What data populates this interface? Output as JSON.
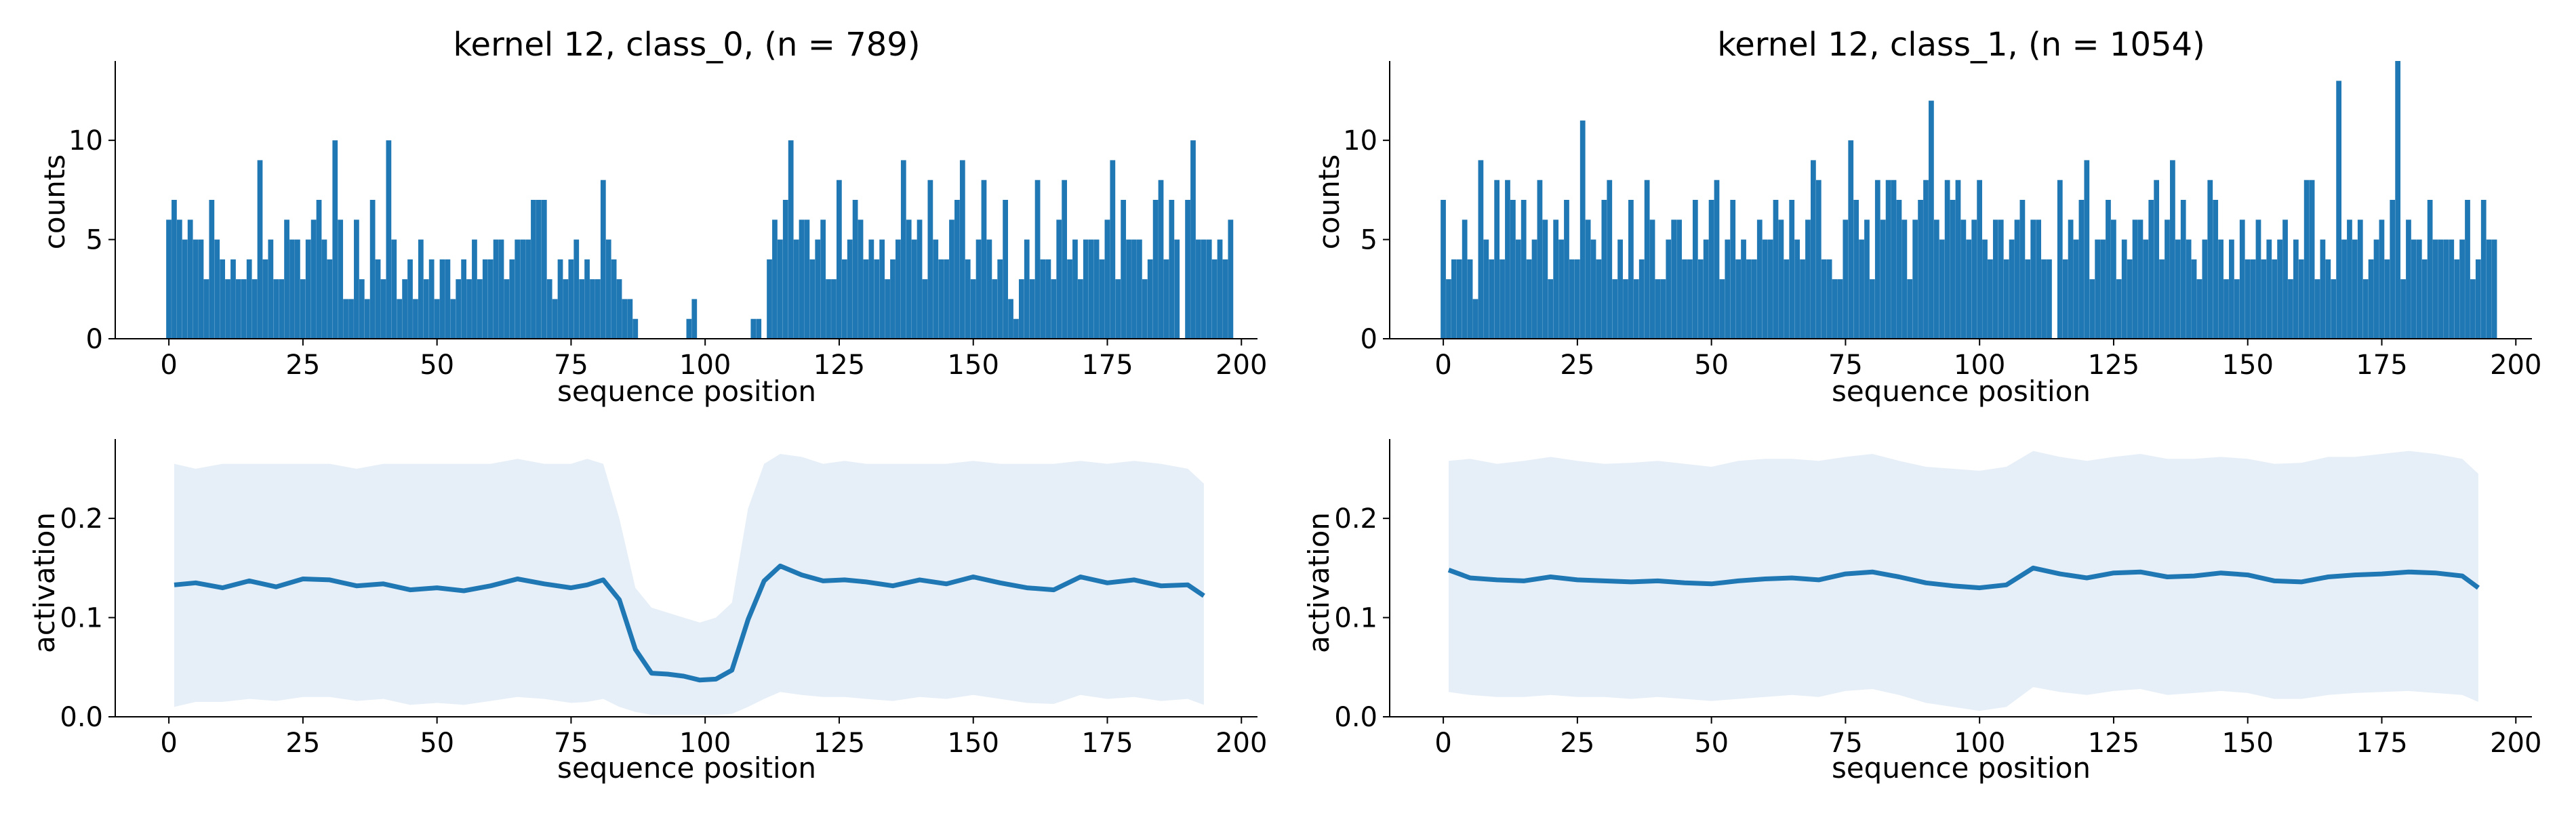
{
  "colors": {
    "accent": "#1f77b4",
    "band": "#e6eff8"
  },
  "charts": [
    {
      "title": "kernel 12, class_0, (n = 789)",
      "xlabel": "sequence position",
      "ylabel": "counts"
    },
    {
      "title": "kernel 12, class_1, (n = 1054)",
      "xlabel": "sequence position",
      "ylabel": "counts"
    },
    {
      "title": "",
      "xlabel": "sequence position",
      "ylabel": "activation"
    },
    {
      "title": "",
      "xlabel": "sequence position",
      "ylabel": "activation"
    }
  ],
  "chart_data": [
    {
      "type": "bar",
      "title": "kernel 12, class_0, (n = 789)",
      "xlabel": "sequence position",
      "ylabel": "counts",
      "xlim": [
        -10,
        203
      ],
      "ylim": [
        0,
        14
      ],
      "xticks": [
        0,
        25,
        50,
        75,
        100,
        125,
        150,
        175,
        200
      ],
      "yticks": [
        0,
        5,
        10
      ],
      "x_start": 0,
      "values": [
        6,
        7,
        6,
        5,
        6,
        5,
        5,
        3,
        7,
        5,
        4,
        3,
        4,
        3,
        3,
        4,
        3,
        9,
        4,
        5,
        3,
        3,
        6,
        5,
        5,
        3,
        5,
        6,
        7,
        5,
        4,
        10,
        6,
        2,
        2,
        6,
        3,
        2,
        7,
        4,
        3,
        10,
        5,
        2,
        3,
        4,
        2,
        5,
        3,
        4,
        2,
        4,
        4,
        2,
        3,
        4,
        3,
        5,
        3,
        4,
        4,
        5,
        5,
        3,
        4,
        5,
        5,
        5,
        7,
        7,
        7,
        3,
        2,
        4,
        3,
        4,
        5,
        3,
        4,
        3,
        3,
        8,
        5,
        4,
        3,
        2,
        2,
        1,
        0,
        0,
        0,
        0,
        0,
        0,
        0,
        0,
        0,
        1,
        2,
        0,
        0,
        0,
        0,
        0,
        0,
        0,
        0,
        0,
        0,
        1,
        1,
        0,
        4,
        6,
        5,
        7,
        10,
        5,
        6,
        6,
        4,
        5,
        6,
        3,
        3,
        8,
        4,
        5,
        7,
        6,
        4,
        5,
        4,
        5,
        3,
        4,
        5,
        9,
        6,
        5,
        6,
        3,
        8,
        5,
        4,
        4,
        6,
        7,
        9,
        4,
        3,
        5,
        8,
        5,
        3,
        4,
        7,
        2,
        1,
        3,
        5,
        3,
        8,
        4,
        4,
        3,
        6,
        8,
        4,
        5,
        3,
        5,
        5,
        5,
        4,
        6,
        9,
        3,
        7,
        5,
        5,
        5,
        3,
        4,
        7,
        8,
        4,
        7,
        5,
        0,
        7,
        10,
        5,
        5,
        5,
        4,
        5,
        4,
        6
      ]
    },
    {
      "type": "bar",
      "title": "kernel 12, class_1, (n = 1054)",
      "xlabel": "sequence position",
      "ylabel": "counts",
      "xlim": [
        -10,
        203
      ],
      "ylim": [
        0,
        14
      ],
      "xticks": [
        0,
        25,
        50,
        75,
        100,
        125,
        150,
        175,
        200
      ],
      "yticks": [
        0,
        5,
        10
      ],
      "x_start": 0,
      "values": [
        7,
        3,
        4,
        4,
        6,
        4,
        2,
        9,
        5,
        4,
        8,
        4,
        8,
        7,
        5,
        7,
        4,
        5,
        8,
        6,
        3,
        6,
        5,
        7,
        4,
        4,
        11,
        6,
        5,
        4,
        7,
        8,
        3,
        5,
        3,
        7,
        3,
        4,
        8,
        6,
        3,
        3,
        5,
        6,
        6,
        4,
        4,
        7,
        4,
        5,
        7,
        8,
        3,
        5,
        7,
        4,
        5,
        4,
        4,
        6,
        5,
        5,
        7,
        6,
        4,
        7,
        5,
        4,
        6,
        9,
        8,
        4,
        4,
        3,
        3,
        6,
        10,
        7,
        5,
        6,
        3,
        8,
        6,
        8,
        8,
        7,
        6,
        3,
        6,
        7,
        8,
        12,
        6,
        5,
        8,
        7,
        8,
        6,
        5,
        6,
        8,
        5,
        4,
        6,
        6,
        4,
        5,
        6,
        7,
        4,
        6,
        6,
        4,
        4,
        0,
        8,
        4,
        6,
        5,
        7,
        9,
        3,
        5,
        5,
        7,
        6,
        3,
        5,
        4,
        6,
        6,
        5,
        7,
        8,
        4,
        6,
        9,
        5,
        7,
        5,
        4,
        3,
        5,
        8,
        7,
        5,
        3,
        5,
        3,
        6,
        4,
        4,
        6,
        4,
        5,
        4,
        5,
        6,
        3,
        5,
        4,
        8,
        8,
        3,
        5,
        4,
        3,
        13,
        5,
        6,
        5,
        6,
        3,
        4,
        5,
        6,
        4,
        7,
        14,
        3,
        6,
        5,
        5,
        4,
        7,
        5,
        5,
        5,
        5,
        4,
        5,
        7,
        3,
        4,
        7,
        5,
        5
      ]
    },
    {
      "type": "area",
      "title": "",
      "xlabel": "sequence position",
      "ylabel": "activation",
      "xlim": [
        -10,
        203
      ],
      "ylim": [
        0,
        0.28
      ],
      "xticks": [
        0,
        25,
        50,
        75,
        100,
        125,
        150,
        175,
        200
      ],
      "yticks": [
        0.0,
        0.1,
        0.2
      ],
      "ytick_labels": [
        "0.0",
        "0.1",
        "0.2"
      ],
      "x": [
        1,
        5,
        10,
        15,
        20,
        25,
        30,
        35,
        40,
        45,
        50,
        55,
        60,
        65,
        70,
        75,
        78,
        81,
        84,
        87,
        90,
        93,
        96,
        99,
        102,
        105,
        108,
        111,
        114,
        118,
        122,
        126,
        130,
        135,
        140,
        145,
        150,
        155,
        160,
        165,
        170,
        175,
        180,
        185,
        190,
        193
      ],
      "mean": [
        0.133,
        0.135,
        0.13,
        0.137,
        0.131,
        0.139,
        0.138,
        0.132,
        0.134,
        0.128,
        0.13,
        0.127,
        0.132,
        0.139,
        0.134,
        0.13,
        0.133,
        0.138,
        0.118,
        0.068,
        0.044,
        0.043,
        0.041,
        0.037,
        0.038,
        0.047,
        0.098,
        0.137,
        0.152,
        0.143,
        0.137,
        0.138,
        0.136,
        0.132,
        0.138,
        0.134,
        0.141,
        0.135,
        0.13,
        0.128,
        0.141,
        0.135,
        0.138,
        0.132,
        0.133,
        0.122
      ],
      "upper": [
        0.255,
        0.25,
        0.255,
        0.255,
        0.255,
        0.255,
        0.255,
        0.25,
        0.255,
        0.255,
        0.255,
        0.255,
        0.255,
        0.26,
        0.255,
        0.255,
        0.26,
        0.255,
        0.2,
        0.13,
        0.11,
        0.105,
        0.1,
        0.095,
        0.1,
        0.115,
        0.21,
        0.255,
        0.265,
        0.262,
        0.255,
        0.258,
        0.255,
        0.255,
        0.255,
        0.255,
        0.258,
        0.255,
        0.255,
        0.255,
        0.258,
        0.255,
        0.258,
        0.255,
        0.25,
        0.235
      ],
      "lower": [
        0.01,
        0.015,
        0.015,
        0.018,
        0.016,
        0.02,
        0.02,
        0.016,
        0.018,
        0.012,
        0.014,
        0.012,
        0.016,
        0.02,
        0.018,
        0.014,
        0.015,
        0.018,
        0.01,
        0.005,
        0.002,
        0.002,
        0.002,
        0.002,
        0.002,
        0.003,
        0.01,
        0.018,
        0.025,
        0.022,
        0.02,
        0.02,
        0.018,
        0.016,
        0.02,
        0.018,
        0.022,
        0.018,
        0.014,
        0.013,
        0.022,
        0.018,
        0.02,
        0.016,
        0.018,
        0.012
      ]
    },
    {
      "type": "area",
      "title": "",
      "xlabel": "sequence position",
      "ylabel": "activation",
      "xlim": [
        -10,
        203
      ],
      "ylim": [
        0,
        0.28
      ],
      "xticks": [
        0,
        25,
        50,
        75,
        100,
        125,
        150,
        175,
        200
      ],
      "yticks": [
        0.0,
        0.1,
        0.2
      ],
      "ytick_labels": [
        "0.0",
        "0.1",
        "0.2"
      ],
      "x": [
        1,
        5,
        10,
        15,
        20,
        25,
        30,
        35,
        40,
        45,
        50,
        55,
        60,
        65,
        70,
        75,
        80,
        85,
        90,
        95,
        100,
        105,
        110,
        115,
        120,
        125,
        130,
        135,
        140,
        145,
        150,
        155,
        160,
        165,
        170,
        175,
        180,
        185,
        190,
        193
      ],
      "mean": [
        0.148,
        0.14,
        0.138,
        0.137,
        0.141,
        0.138,
        0.137,
        0.136,
        0.137,
        0.135,
        0.134,
        0.137,
        0.139,
        0.14,
        0.138,
        0.144,
        0.146,
        0.141,
        0.135,
        0.132,
        0.13,
        0.133,
        0.15,
        0.144,
        0.14,
        0.145,
        0.146,
        0.141,
        0.142,
        0.145,
        0.143,
        0.137,
        0.136,
        0.141,
        0.143,
        0.144,
        0.146,
        0.145,
        0.142,
        0.13
      ],
      "upper": [
        0.258,
        0.26,
        0.255,
        0.258,
        0.262,
        0.258,
        0.255,
        0.256,
        0.258,
        0.255,
        0.252,
        0.258,
        0.26,
        0.26,
        0.258,
        0.262,
        0.265,
        0.258,
        0.252,
        0.25,
        0.248,
        0.252,
        0.268,
        0.262,
        0.258,
        0.262,
        0.265,
        0.26,
        0.26,
        0.262,
        0.26,
        0.255,
        0.256,
        0.262,
        0.262,
        0.265,
        0.268,
        0.265,
        0.26,
        0.245
      ],
      "lower": [
        0.025,
        0.022,
        0.02,
        0.02,
        0.022,
        0.02,
        0.02,
        0.018,
        0.02,
        0.018,
        0.016,
        0.018,
        0.02,
        0.022,
        0.02,
        0.026,
        0.028,
        0.022,
        0.014,
        0.01,
        0.006,
        0.01,
        0.03,
        0.025,
        0.022,
        0.026,
        0.028,
        0.022,
        0.024,
        0.026,
        0.024,
        0.018,
        0.018,
        0.022,
        0.024,
        0.025,
        0.026,
        0.024,
        0.022,
        0.015
      ]
    }
  ]
}
